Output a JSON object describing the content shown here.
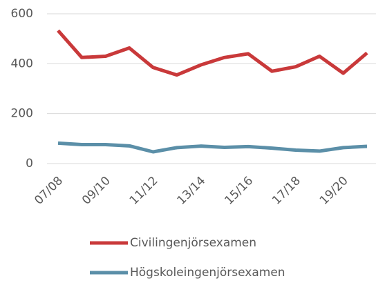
{
  "chart_data": {
    "type": "line",
    "categories": [
      "07/08",
      null,
      "09/10",
      null,
      "11/12",
      null,
      "13/14",
      null,
      "15/16",
      null,
      "17/18",
      null,
      "19/20",
      null
    ],
    "series": [
      {
        "name": "Civilingenjörsexamen",
        "color": "#c9393a",
        "values": [
          533,
          425,
          430,
          463,
          385,
          355,
          395,
          425,
          440,
          370,
          388,
          430,
          362,
          443
        ]
      },
      {
        "name": "Högskoleingenjörsexamen",
        "color": "#5b8fa8",
        "values": [
          82,
          76,
          76,
          71,
          47,
          64,
          70,
          65,
          68,
          62,
          54,
          50,
          64,
          69
        ]
      }
    ],
    "ylim": [
      0,
      600
    ],
    "yticks": [
      0,
      200,
      400,
      600
    ],
    "grid": true
  }
}
